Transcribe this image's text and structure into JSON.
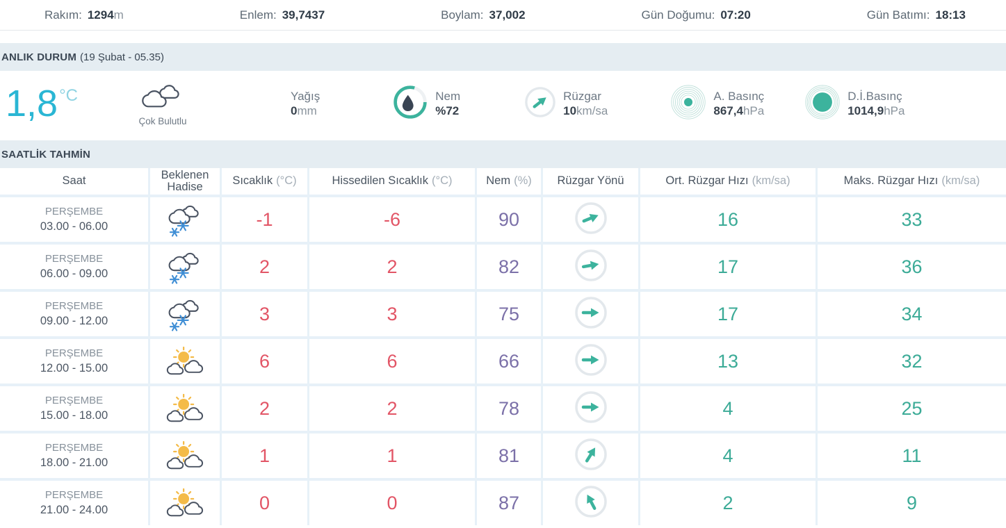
{
  "colors": {
    "accent_teal": "#3cb39d",
    "temp_cyan": "#2ab6d4",
    "temp_red": "#e25566",
    "humidity_purple": "#7b70a8",
    "snow_blue": "#3f8ed5",
    "sun_yellow": "#f4bb48",
    "cloud_outline": "#4a5362",
    "ring_gray": "#e3e8ec"
  },
  "topbar": {
    "items": [
      {
        "label": "Rakım:",
        "value": "1294",
        "unit": "m"
      },
      {
        "label": "Enlem:",
        "value": "39,7437",
        "unit": ""
      },
      {
        "label": "Boylam:",
        "value": "37,002",
        "unit": ""
      },
      {
        "label": "Gün Doğumu:",
        "value": "07:20",
        "unit": ""
      },
      {
        "label": "Gün Batımı:",
        "value": "18:13",
        "unit": ""
      }
    ]
  },
  "current": {
    "section_title": "ANLIK DURUM",
    "section_date": "(19 Şubat - 05.35)",
    "temperature": "1,8",
    "temperature_unit": "°C",
    "condition": "Çok Bulutlu",
    "condition_icon": "double-cloud-icon",
    "precip_label": "Yağış",
    "precip_value": "0",
    "precip_unit": "mm",
    "humidity_label": "Nem",
    "humidity_value": "%72",
    "humidity_icon": "humidity-gauge-icon",
    "wind_label": "Rüzgar",
    "wind_value": "10",
    "wind_unit": "km/sa",
    "wind_icon": "wind-direction-icon",
    "wind_dir_deg": -38,
    "pressure_label": "A. Basınç",
    "pressure_value": "867,4",
    "pressure_unit": "hPa",
    "pressure_icon": "pressure-ripple-icon",
    "sea_pressure_label": "D.İ.Basınç",
    "sea_pressure_value": "1014,9",
    "sea_pressure_unit": "hPa",
    "sea_pressure_icon": "sea-pressure-ripple-icon"
  },
  "hourly": {
    "section_title": "SAATLİK TAHMİN",
    "columns": [
      {
        "label": "Saat",
        "unit": ""
      },
      {
        "label": "Beklenen Hadise",
        "unit": ""
      },
      {
        "label": "Sıcaklık",
        "unit": "(°C)"
      },
      {
        "label": "Hissedilen Sıcaklık",
        "unit": "(°C)"
      },
      {
        "label": "Nem",
        "unit": "(%)"
      },
      {
        "label": "Rüzgar Yönü",
        "unit": ""
      },
      {
        "label": "Ort. Rüzgar Hızı",
        "unit": "(km/sa)"
      },
      {
        "label": "Maks. Rüzgar Hızı",
        "unit": "(km/sa)"
      }
    ],
    "rows": [
      {
        "day": "PERŞEMBE",
        "hours": "03.00 - 06.00",
        "icon": "snow-cloud",
        "temp": "-1",
        "feels": "-6",
        "humidity": "90",
        "wind_dir_deg": -22,
        "avg_wind": "16",
        "max_wind": "33"
      },
      {
        "day": "PERŞEMBE",
        "hours": "06.00 - 09.00",
        "icon": "snow-cloud",
        "temp": "2",
        "feels": "2",
        "humidity": "82",
        "wind_dir_deg": -10,
        "avg_wind": "17",
        "max_wind": "36"
      },
      {
        "day": "PERŞEMBE",
        "hours": "09.00 - 12.00",
        "icon": "snow-cloud",
        "temp": "3",
        "feels": "3",
        "humidity": "75",
        "wind_dir_deg": 0,
        "avg_wind": "17",
        "max_wind": "34"
      },
      {
        "day": "PERŞEMBE",
        "hours": "12.00 - 15.00",
        "icon": "sun-cloud",
        "temp": "6",
        "feels": "6",
        "humidity": "66",
        "wind_dir_deg": 0,
        "avg_wind": "13",
        "max_wind": "32"
      },
      {
        "day": "PERŞEMBE",
        "hours": "15.00 - 18.00",
        "icon": "sun-cloud",
        "temp": "2",
        "feels": "2",
        "humidity": "78",
        "wind_dir_deg": 0,
        "avg_wind": "4",
        "max_wind": "25"
      },
      {
        "day": "PERŞEMBE",
        "hours": "18.00 - 21.00",
        "icon": "sun-cloud",
        "temp": "1",
        "feels": "1",
        "humidity": "81",
        "wind_dir_deg": -58,
        "avg_wind": "4",
        "max_wind": "11"
      },
      {
        "day": "PERŞEMBE",
        "hours": "21.00 - 24.00",
        "icon": "sun-cloud",
        "temp": "0",
        "feels": "0",
        "humidity": "87",
        "wind_dir_deg": -118,
        "avg_wind": "2",
        "max_wind": "9"
      }
    ]
  }
}
